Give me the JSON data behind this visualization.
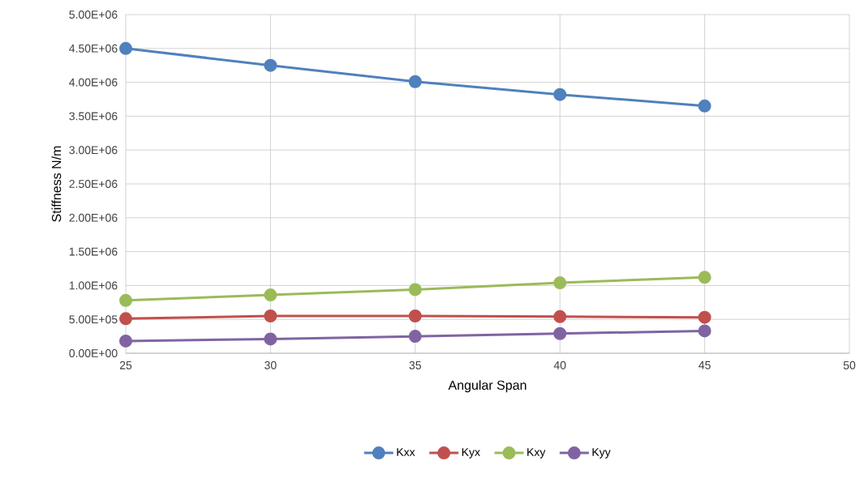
{
  "chart_data": {
    "type": "line",
    "xlabel": "Angular Span",
    "ylabel": "Stiffness N/m",
    "x": [
      25,
      30,
      35,
      40,
      45
    ],
    "series": [
      {
        "name": "Kxx",
        "color": "#4f81bd",
        "values": [
          4500000,
          4250000,
          4010000,
          3820000,
          3650000
        ]
      },
      {
        "name": "Kyx",
        "color": "#c0504d",
        "values": [
          510000,
          550000,
          550000,
          540000,
          530000
        ]
      },
      {
        "name": "Kxy",
        "color": "#9bbb59",
        "values": [
          780000,
          860000,
          940000,
          1040000,
          1120000
        ]
      },
      {
        "name": "Kyy",
        "color": "#8064a2",
        "values": [
          180000,
          210000,
          250000,
          290000,
          330000
        ]
      }
    ],
    "xlim": [
      25,
      50
    ],
    "xticks": [
      25,
      30,
      35,
      40,
      45,
      50
    ],
    "ylim": [
      0,
      5000000
    ],
    "yticks": [
      {
        "value": 0,
        "label": "0.00E+00"
      },
      {
        "value": 500000,
        "label": "5.00E+05"
      },
      {
        "value": 1000000,
        "label": "1.00E+06"
      },
      {
        "value": 1500000,
        "label": "1.50E+06"
      },
      {
        "value": 2000000,
        "label": "2.00E+06"
      },
      {
        "value": 2500000,
        "label": "2.50E+06"
      },
      {
        "value": 3000000,
        "label": "3.00E+06"
      },
      {
        "value": 3500000,
        "label": "3.50E+06"
      },
      {
        "value": 4000000,
        "label": "4.00E+06"
      },
      {
        "value": 4500000,
        "label": "4.50E+06"
      },
      {
        "value": 5000000,
        "label": "5.00E+06"
      }
    ],
    "grid": true,
    "legend": "bottom",
    "marker": "circle",
    "line_style": "solid"
  }
}
